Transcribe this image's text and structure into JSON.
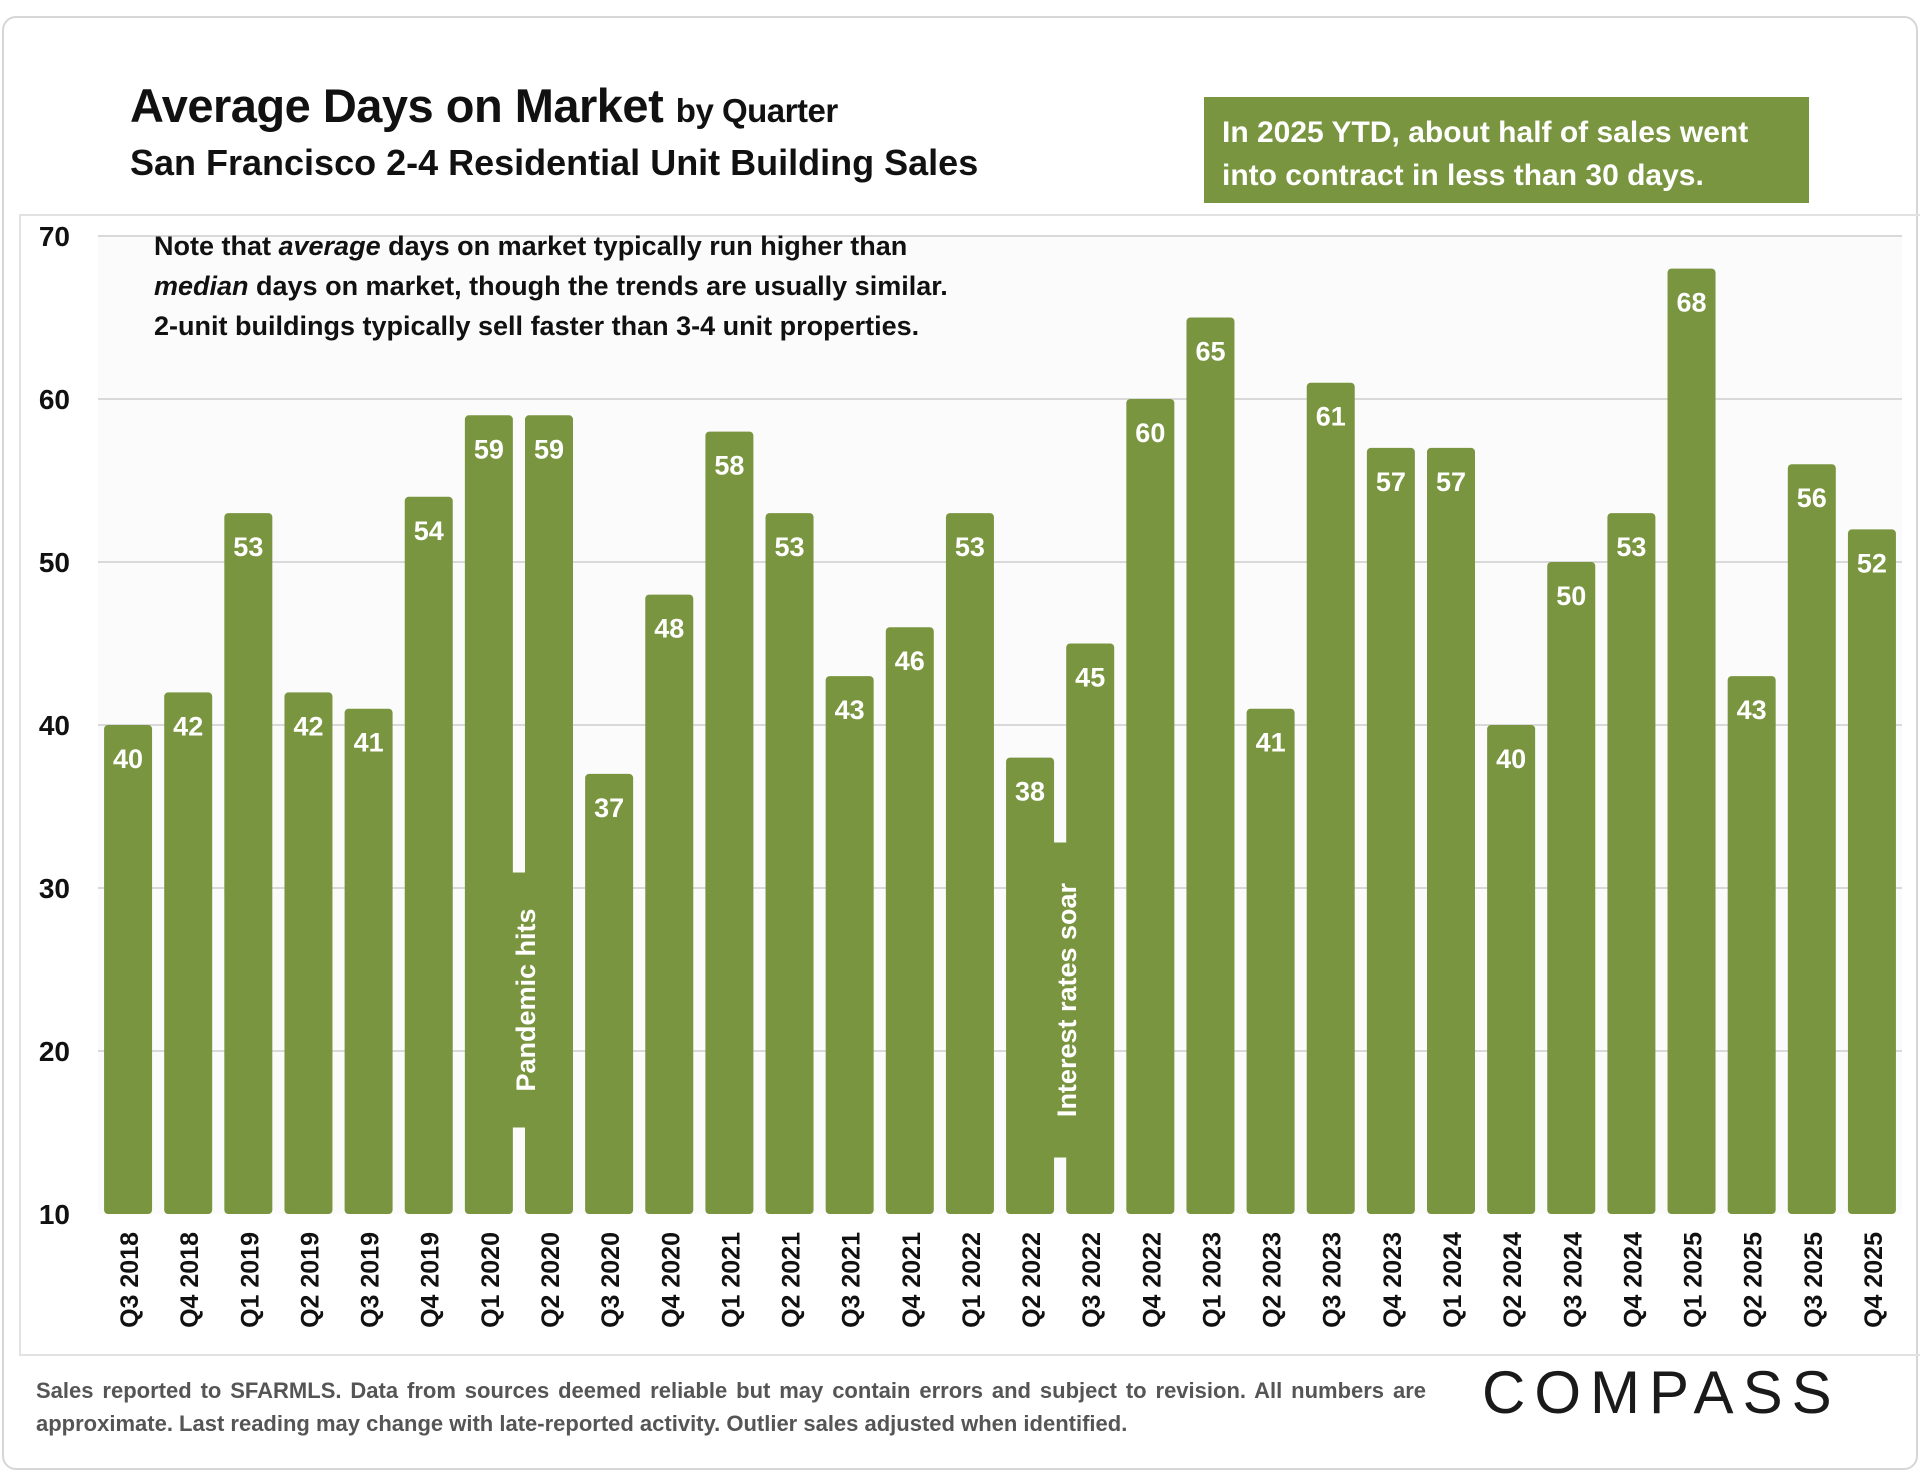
{
  "header": {
    "title_main": "Average Days on Market",
    "title_suffix": "by Quarter",
    "subtitle": "San Francisco 2-4 Residential Unit Building Sales"
  },
  "callout": {
    "line1": "In 2025 YTD, about half of sales went",
    "line2": "into contract in less than 30 days."
  },
  "note": {
    "part1": "Note that ",
    "em1": "average",
    "part2": " days on market typically run higher than",
    "em2": "median",
    "part3": " days on market, though the trends are usually similar.",
    "line3": "2-unit buildings typically sell faster than 3-4 unit properties."
  },
  "annotations": {
    "pandemic": "Pandemic hits",
    "rates": "Interest rates soar"
  },
  "footer": {
    "disclaimer": "Sales reported to SFARMLS. Data from sources deemed reliable but may contain errors and subject to revision. All numbers are approximate. Last reading may change with late-reported activity. Outlier sales adjusted when identified."
  },
  "brand": {
    "logo": "COMPASS"
  },
  "colors": {
    "bar": "#7a953f",
    "callout_bg": "#7a953f",
    "grid": "#d9d9d9"
  },
  "chart_data": {
    "type": "bar",
    "categories": [
      "Q3 2018",
      "Q4 2018",
      "Q1 2019",
      "Q2 2019",
      "Q3 2019",
      "Q4 2019",
      "Q1 2020",
      "Q2 2020",
      "Q3 2020",
      "Q4 2020",
      "Q1 2021",
      "Q2 2021",
      "Q3 2021",
      "Q4 2021",
      "Q1 2022",
      "Q2 2022",
      "Q3 2022",
      "Q4 2022",
      "Q1 2023",
      "Q2 2023",
      "Q3 2023",
      "Q4 2023",
      "Q1 2024",
      "Q2 2024",
      "Q3 2024",
      "Q4 2024",
      "Q1 2025",
      "Q2 2025",
      "Q3 2025",
      "Q4 2025"
    ],
    "values": [
      40,
      42,
      53,
      42,
      41,
      54,
      59,
      59,
      37,
      48,
      58,
      53,
      43,
      46,
      53,
      38,
      45,
      60,
      65,
      41,
      61,
      57,
      57,
      40,
      50,
      53,
      68,
      43,
      56,
      52
    ],
    "ylim": [
      10,
      70
    ],
    "yticks": [
      10,
      20,
      30,
      40,
      50,
      60,
      70
    ],
    "data_labels": true,
    "grid": true,
    "legend": "none"
  }
}
